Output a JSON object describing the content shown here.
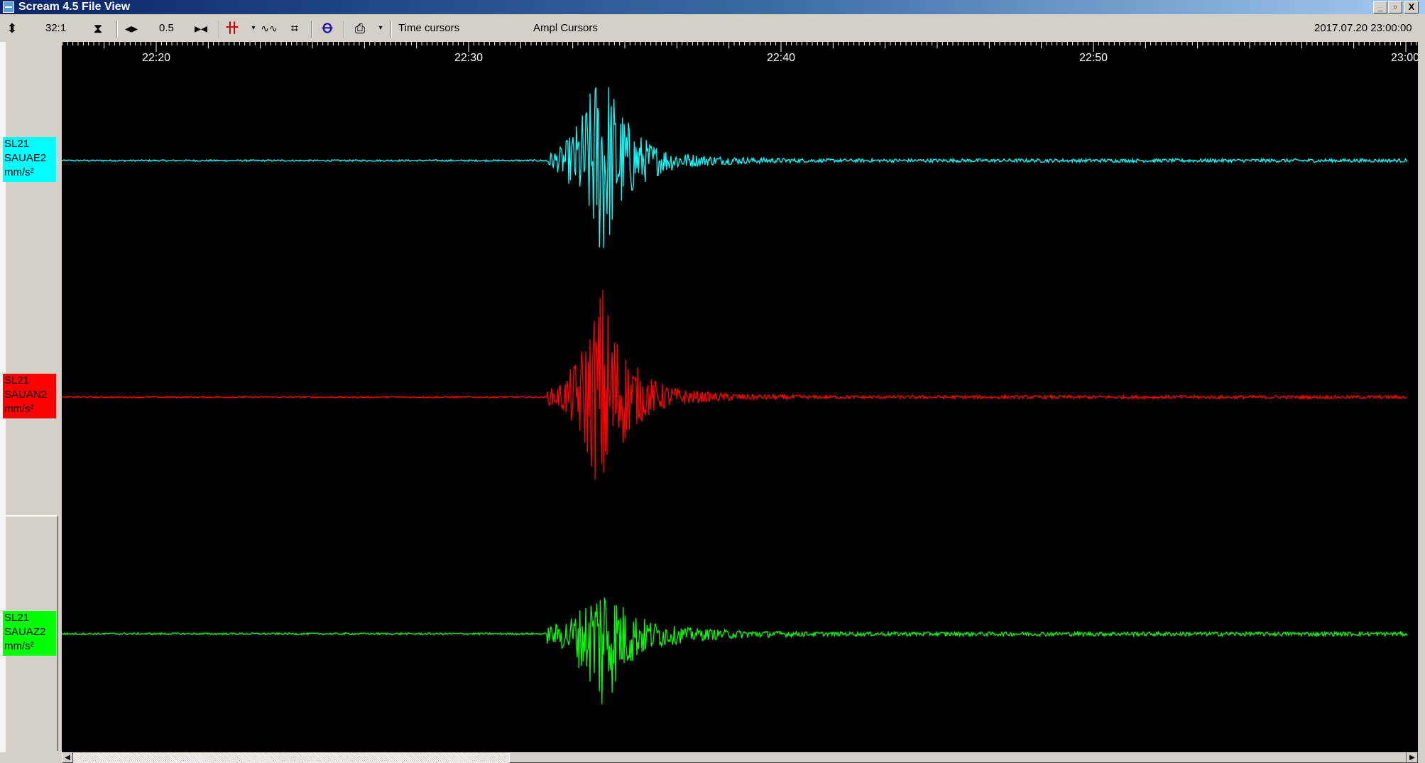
{
  "window": {
    "title": "Scream 4.5 File View",
    "controls": {
      "minimize": "_",
      "restore": "▫",
      "close": "X"
    }
  },
  "toolbar": {
    "zoom_ratio": "32:1",
    "time_scale": "0.5",
    "time_cursors_label": "Time cursors",
    "ampl_cursors_label": "Ampl Cursors",
    "datetime": "2017.07.20 23:00:00"
  },
  "time_axis": {
    "labels": [
      "22:20",
      "22:30",
      "22:40",
      "22:50",
      "23:00"
    ]
  },
  "channels": [
    {
      "station": "SL21",
      "component": "SAUAE2",
      "units": "mm/s²",
      "color": "#00ffff",
      "label_bg": "#00ffff"
    },
    {
      "station": "SL21",
      "component": "SAUAN2",
      "units": "mm/s²",
      "color": "#ff0000",
      "label_bg": "#ff0000"
    },
    {
      "station": "SL21",
      "component": "SAUAZ2",
      "units": "mm/s²",
      "color": "#00ff00",
      "label_bg": "#00ff00"
    }
  ],
  "colors": {
    "plot_bg": "#000000",
    "window_bg": "#d4d0c8",
    "titlebar": "#0a246a"
  }
}
